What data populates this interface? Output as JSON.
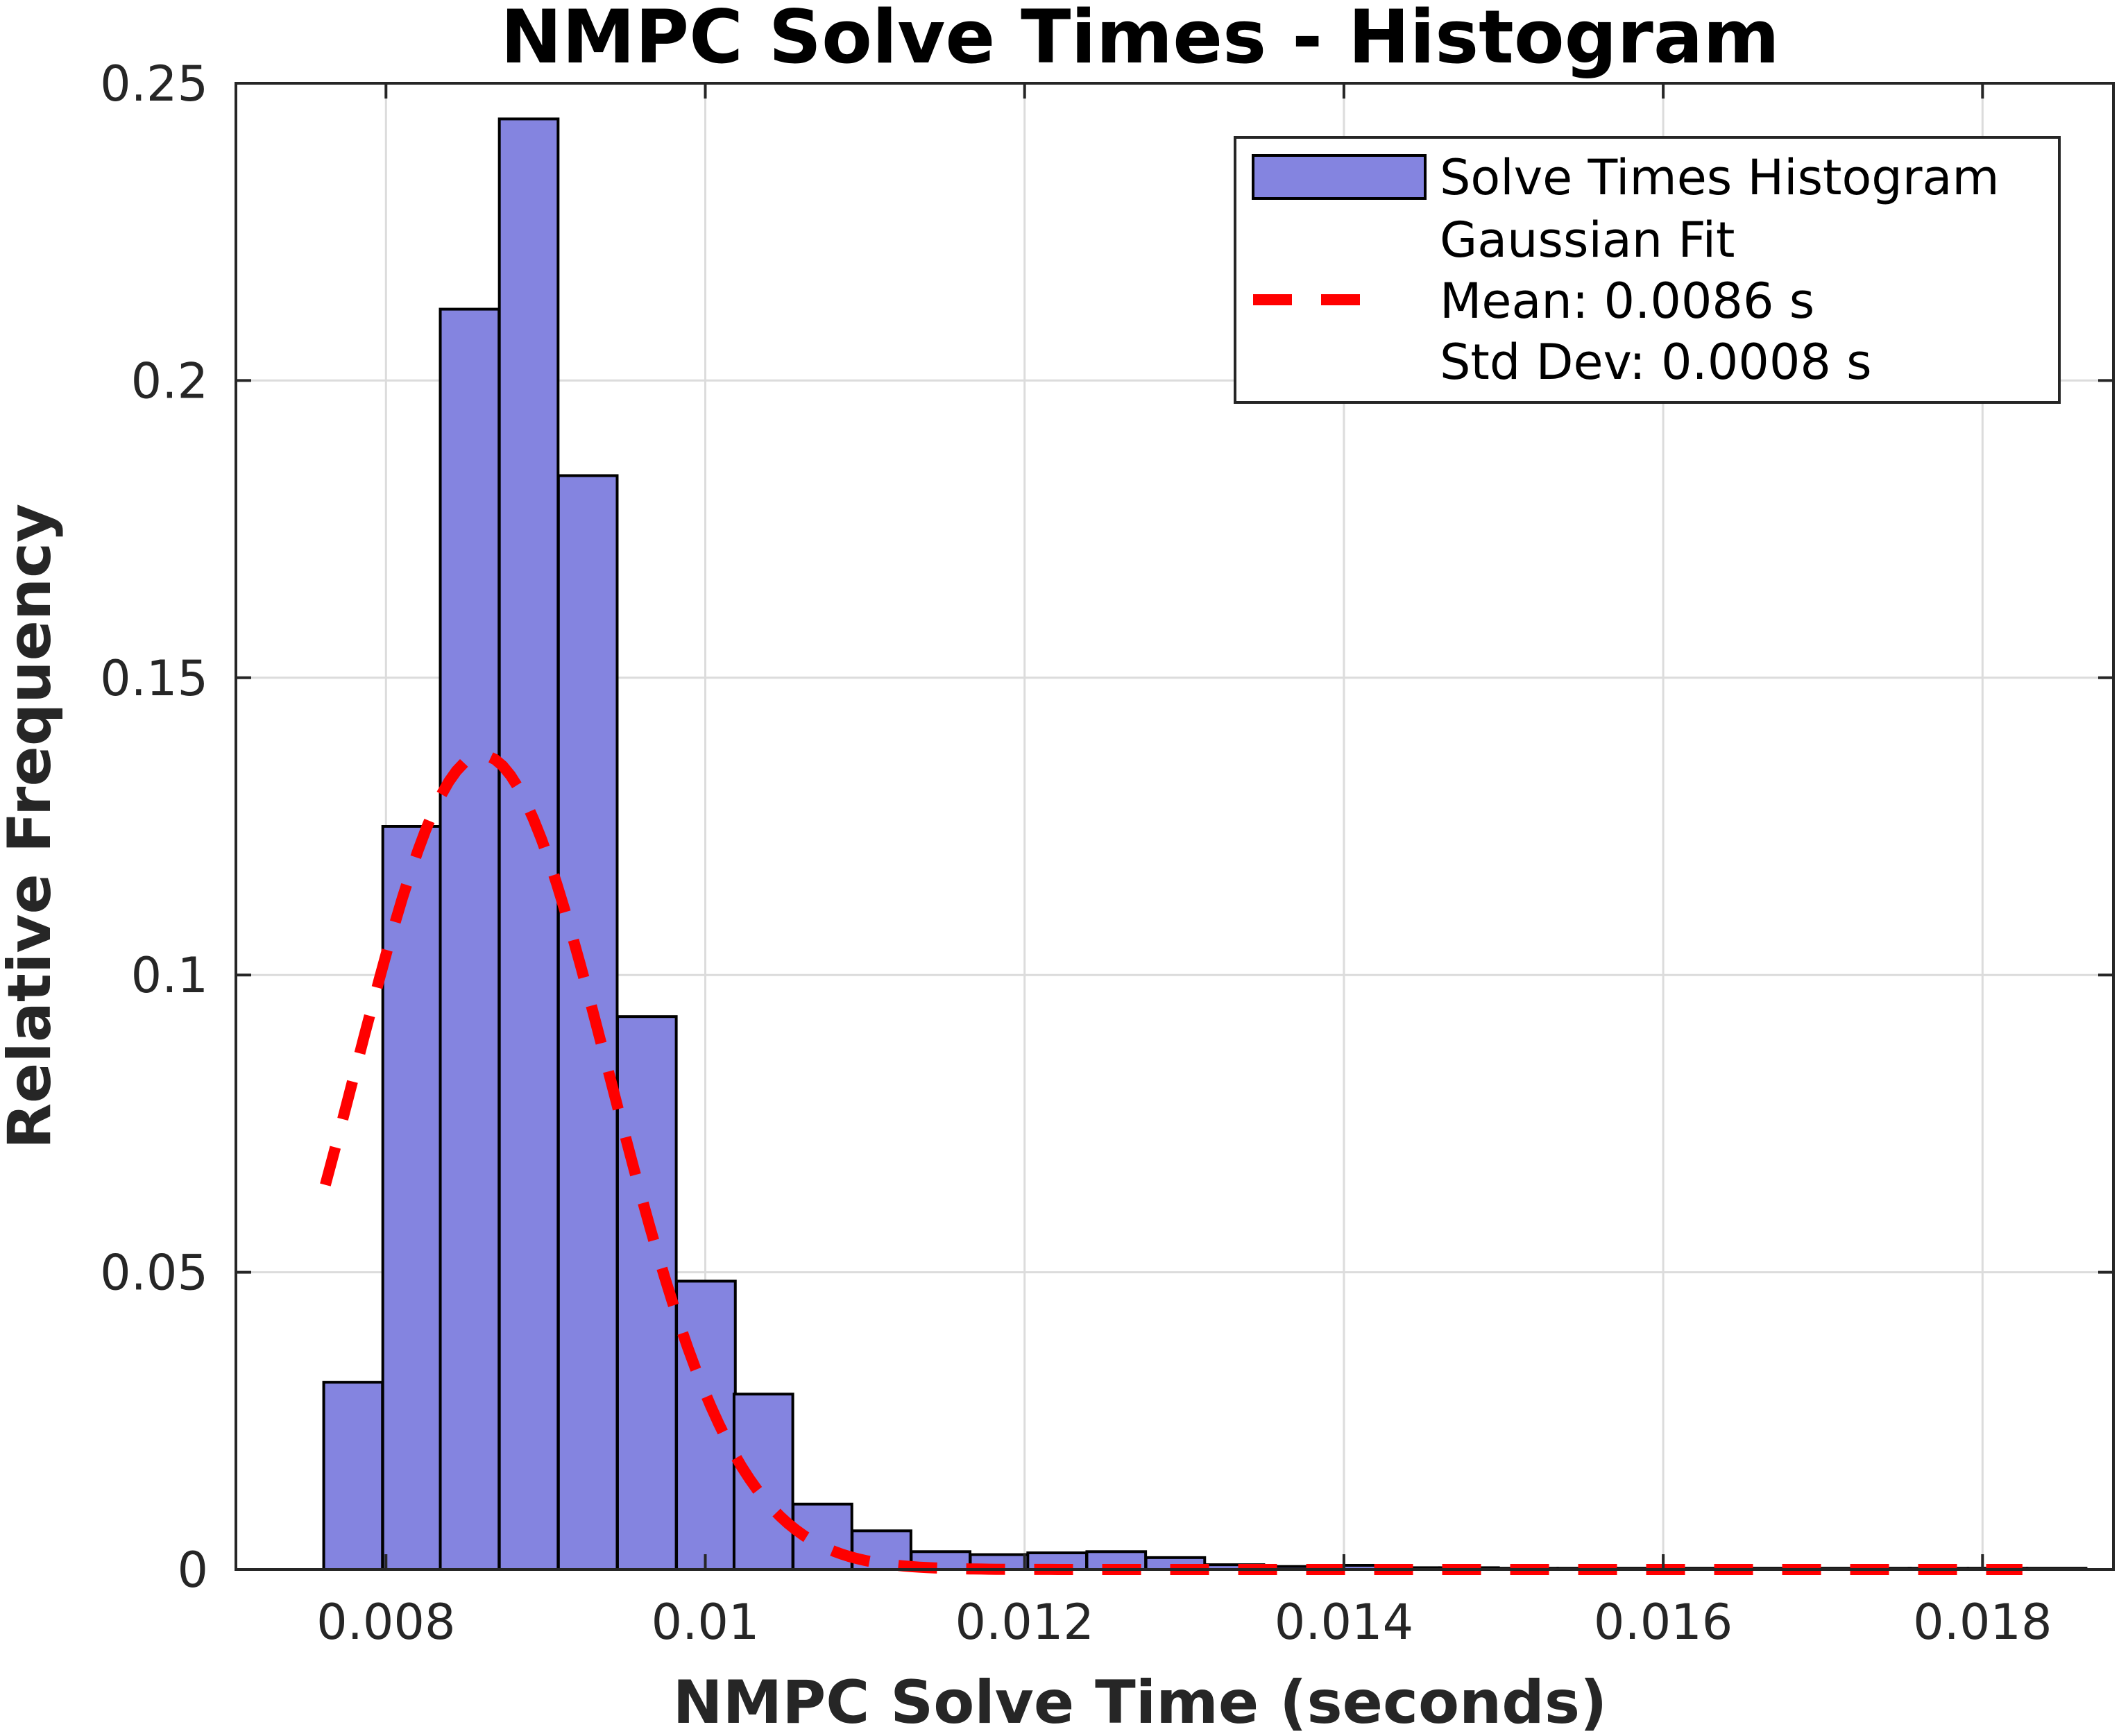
{
  "chart_data": {
    "type": "bar",
    "title": "NMPC Solve Times - Histogram",
    "xlabel": "NMPC Solve Time (seconds)",
    "ylabel": "Relative Frequency",
    "xlim": [
      0.00706,
      0.01882
    ],
    "ylim": [
      0,
      0.25
    ],
    "xticks": [
      0.008,
      0.01,
      0.012,
      0.014,
      0.016,
      0.018
    ],
    "xtick_labels": [
      "0.008",
      "0.01",
      "0.012",
      "0.014",
      "0.016",
      "0.018"
    ],
    "yticks": [
      0,
      0.05,
      0.1,
      0.15,
      0.2,
      0.25
    ],
    "ytick_labels": [
      "0",
      "0.05",
      "0.1",
      "0.15",
      "0.2",
      "0.25"
    ],
    "grid": true,
    "legend_position": "top-right",
    "bin_width": 0.000368,
    "bins": [
      {
        "x0": 0.00761,
        "value": 0.0315
      },
      {
        "x0": 0.00798,
        "value": 0.125
      },
      {
        "x0": 0.00834,
        "value": 0.212
      },
      {
        "x0": 0.00871,
        "value": 0.244
      },
      {
        "x0": 0.00908,
        "value": 0.184
      },
      {
        "x0": 0.00945,
        "value": 0.093
      },
      {
        "x0": 0.00982,
        "value": 0.0485
      },
      {
        "x0": 0.01018,
        "value": 0.0295
      },
      {
        "x0": 0.01055,
        "value": 0.011
      },
      {
        "x0": 0.01092,
        "value": 0.0065
      },
      {
        "x0": 0.01129,
        "value": 0.003
      },
      {
        "x0": 0.01166,
        "value": 0.0025
      },
      {
        "x0": 0.01202,
        "value": 0.0028
      },
      {
        "x0": 0.01239,
        "value": 0.003
      },
      {
        "x0": 0.01276,
        "value": 0.002
      },
      {
        "x0": 0.01313,
        "value": 0.0008
      },
      {
        "x0": 0.0135,
        "value": 0.0005
      },
      {
        "x0": 0.01386,
        "value": 0.0007
      },
      {
        "x0": 0.01423,
        "value": 0.0003
      },
      {
        "x0": 0.0146,
        "value": 0.0003
      },
      {
        "x0": 0.01497,
        "value": 0.0002
      },
      {
        "x0": 0.01534,
        "value": 0.0002
      },
      {
        "x0": 0.0157,
        "value": 0.0002
      },
      {
        "x0": 0.01607,
        "value": 0.0002
      },
      {
        "x0": 0.01644,
        "value": 0.0002
      },
      {
        "x0": 0.01681,
        "value": 0.0002
      },
      {
        "x0": 0.01718,
        "value": 0.0002
      },
      {
        "x0": 0.01754,
        "value": 0.0002
      },
      {
        "x0": 0.01791,
        "value": 0.0002
      },
      {
        "x0": 0.01828,
        "value": 0.0002
      }
    ],
    "series": [
      {
        "name": "Solve Times Histogram",
        "kind": "histogram",
        "color": "#8484e0"
      },
      {
        "name": "Gaussian Fit",
        "kind": "line",
        "color": "#ff0000",
        "mean": 0.0086,
        "std": 0.0008
      }
    ],
    "fit_curve": {
      "peak": 0.137,
      "x_start": 0.00762,
      "x_end": 0.01825
    },
    "legend": {
      "entries": [
        "Solve Times Histogram",
        "Gaussian Fit",
        "Mean: 0.0086 s",
        "Std Dev: 0.0008 s"
      ]
    }
  }
}
